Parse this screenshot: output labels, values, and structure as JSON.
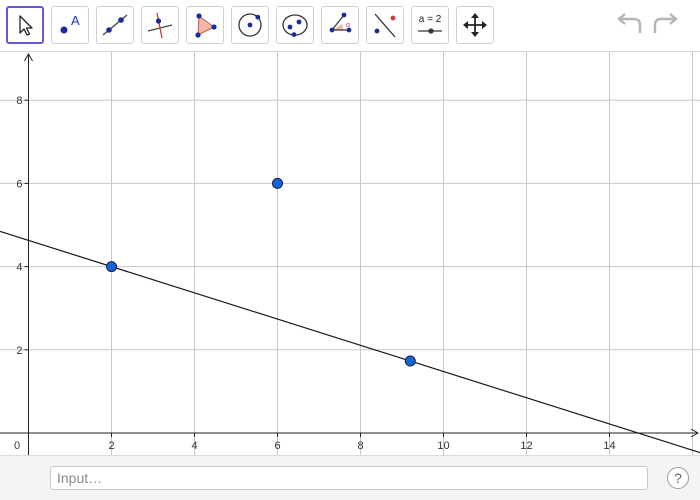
{
  "toolbar": {
    "tools": [
      {
        "name": "move",
        "icon": "cursor-arrow-icon",
        "selected": true
      },
      {
        "name": "point",
        "icon": "point-icon",
        "label": "A"
      },
      {
        "name": "line",
        "icon": "line-through-points-icon"
      },
      {
        "name": "perpendicular-line",
        "icon": "perpendicular-line-icon"
      },
      {
        "name": "polygon",
        "icon": "polygon-icon"
      },
      {
        "name": "circle-center-point",
        "icon": "circle-center-point-icon"
      },
      {
        "name": "ellipse",
        "icon": "ellipse-icon"
      },
      {
        "name": "angle",
        "icon": "angle-icon"
      },
      {
        "name": "reflect",
        "icon": "reflect-about-line-icon"
      },
      {
        "name": "slider",
        "icon": "slider-icon",
        "label": "a = 2"
      },
      {
        "name": "move-graphics-view",
        "icon": "move-graphics-view-icon"
      }
    ],
    "undo_icon": "undo-icon",
    "redo_icon": "redo-icon"
  },
  "graphics": {
    "x_ticks": [
      "0",
      "2",
      "4",
      "6",
      "8",
      "10",
      "12",
      "14"
    ],
    "y_ticks": [
      "2",
      "4",
      "6",
      "8"
    ],
    "points": [
      {
        "x": 2,
        "y": 4
      },
      {
        "x": 6,
        "y": 6
      },
      {
        "x": 9.2,
        "y": 1.73
      }
    ],
    "line": {
      "x1": 2,
      "y1": 4,
      "x2": 9.2,
      "y2": 1.73
    },
    "point_color": "#1565d8",
    "grid_color": "#c8c8c8"
  },
  "input_bar": {
    "placeholder": "Input…",
    "help_label": "?"
  }
}
